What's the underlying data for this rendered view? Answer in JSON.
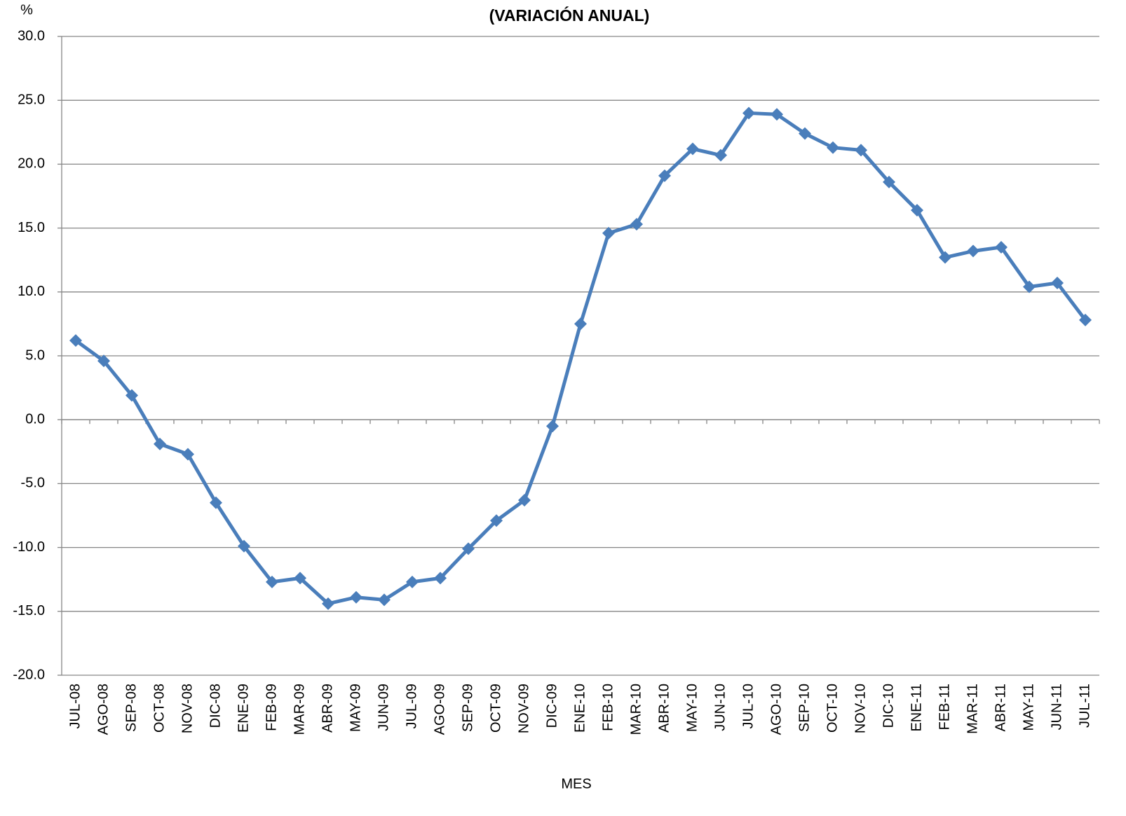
{
  "chart_data": {
    "type": "line",
    "title": "(VARIACIÓN ANUAL)",
    "y_axis_label": "%",
    "x_axis_label": "MES",
    "categories": [
      "JUL-08",
      "AGO-08",
      "SEP-08",
      "OCT-08",
      "NOV-08",
      "DIC-08",
      "ENE-09",
      "FEB-09",
      "MAR-09",
      "ABR-09",
      "MAY-09",
      "JUN-09",
      "JUL-09",
      "AGO-09",
      "SEP-09",
      "OCT-09",
      "NOV-09",
      "DIC-09",
      "ENE-10",
      "FEB-10",
      "MAR-10",
      "ABR-10",
      "MAY-10",
      "JUN-10",
      "JUL-10",
      "AGO-10",
      "SEP-10",
      "OCT-10",
      "NOV-10",
      "DIC-10",
      "ENE-11",
      "FEB-11",
      "MAR-11",
      "ABR-11",
      "MAY-11",
      "JUN-11",
      "JUL-11"
    ],
    "series": [
      {
        "color": "#4a7ebb",
        "values": [
          6.2,
          4.6,
          1.9,
          -1.9,
          -2.7,
          -6.5,
          -9.9,
          -12.7,
          -12.4,
          -14.4,
          -13.9,
          -14.1,
          -12.7,
          -12.4,
          -10.1,
          -7.9,
          -6.3,
          -0.5,
          7.5,
          14.6,
          15.3,
          19.1,
          21.2,
          20.7,
          24.0,
          23.9,
          22.4,
          21.3,
          21.1,
          18.6,
          16.4,
          12.7,
          13.2,
          13.5,
          10.4,
          10.7,
          7.8
        ]
      }
    ],
    "ylim": [
      -20,
      30
    ],
    "yticks": [
      {
        "value": -20,
        "label": "-20.0"
      },
      {
        "value": -15,
        "label": "-15.0"
      },
      {
        "value": -10,
        "label": "-10.0"
      },
      {
        "value": -5,
        "label": "-5.0"
      },
      {
        "value": 0,
        "label": "0.0"
      },
      {
        "value": 5,
        "label": "5.0"
      },
      {
        "value": 10,
        "label": "10.0"
      },
      {
        "value": 15,
        "label": "15.0"
      },
      {
        "value": 20,
        "label": "20.0"
      },
      {
        "value": 25,
        "label": "25.0"
      },
      {
        "value": 30,
        "label": "30.0"
      }
    ],
    "grid": true
  }
}
